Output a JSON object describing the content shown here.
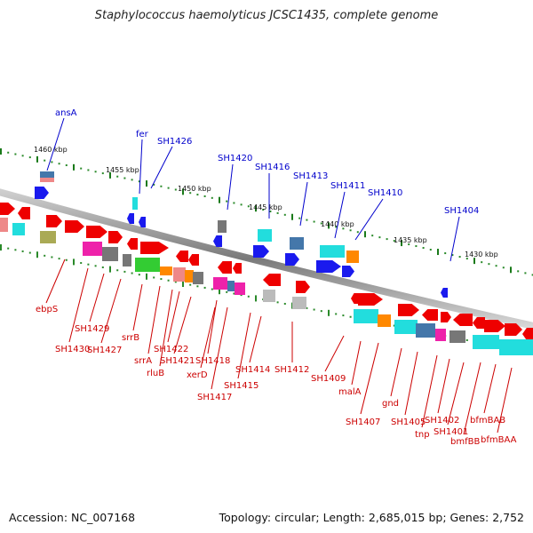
{
  "title": "Staphylococcus haemolyticus JCSC1435, complete genome",
  "accession_text": "Accession: NC_007168",
  "topology_text": "Topology: circular; Length: 2,685,015 bp; Genes: 2,752",
  "colors": {
    "label_top": "#0000cc",
    "label_bottom": "#cc0000",
    "backbone": "#888888",
    "tick_major": "#1a7a1a",
    "gene_red": "#ee0000",
    "gene_blue": "#1a1aee",
    "gene_cyan": "#22dddd",
    "gene_green": "#33cc33",
    "gene_orange": "#ff8800",
    "gene_magenta": "#ee22aa",
    "gene_gray": "#777777",
    "gene_olive": "#aaaa55",
    "gene_steel": "#4477aa",
    "gene_salmon": "#ee8888",
    "gene_lightgray": "#bbbbbb"
  },
  "scale_labels": [
    "1460 kbp",
    "1455 kbp",
    "1450 kbp",
    "1445 kbp",
    "1440 kbp",
    "1435 kbp",
    "1430 kbp"
  ],
  "top_labels": [
    "ansA",
    "fer",
    "SH1426",
    "SH1420",
    "SH1416",
    "SH1413",
    "SH1411",
    "SH1410",
    "SH1404"
  ],
  "bottom_labels": [
    "ebpS",
    "SH1430",
    "SH1429",
    "SH1427",
    "srrB",
    "srrA",
    "rluB",
    "SH1422",
    "SH1421",
    "SH1418",
    "xerD",
    "SH1417",
    "SH1415",
    "SH1414",
    "SH1412",
    "SH1409",
    "malA",
    "SH1407",
    "gnd",
    "SH1405",
    "tnp",
    "SH1402",
    "SH1401",
    "bmfBB",
    "bfmBAB",
    "bfmBAA"
  ]
}
